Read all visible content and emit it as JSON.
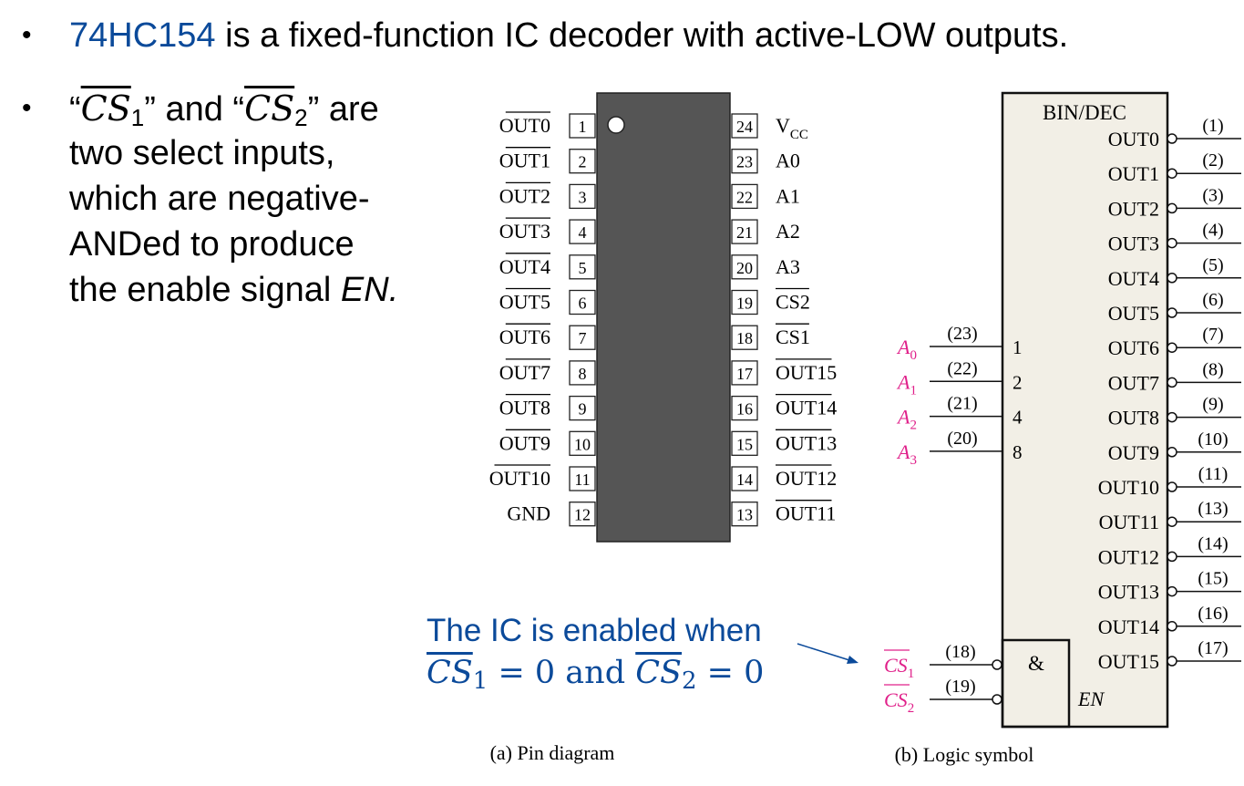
{
  "bullet1": {
    "part_name": "74HC154",
    "rest": " is a fixed-function IC decoder with active-LOW outputs."
  },
  "bullet2": {
    "open_quote": "“",
    "cs_base": "CS",
    "sub1": "1",
    "sub2": "2",
    "close_quote_and": "” and “",
    "close_quote_are": "” are",
    "line2": "two select inputs,",
    "line3": "which are negative-",
    "line4": "ANDed to produce",
    "line5_prefix": "the enable signal ",
    "line5_en": "EN."
  },
  "pin_diagram": {
    "caption": "(a) Pin diagram",
    "left_pins": [
      {
        "num": "1",
        "label": "OUT0",
        "overbar": true
      },
      {
        "num": "2",
        "label": "OUT1",
        "overbar": true
      },
      {
        "num": "3",
        "label": "OUT2",
        "overbar": true
      },
      {
        "num": "4",
        "label": "OUT3",
        "overbar": true
      },
      {
        "num": "5",
        "label": "OUT4",
        "overbar": true
      },
      {
        "num": "6",
        "label": "OUT5",
        "overbar": true
      },
      {
        "num": "7",
        "label": "OUT6",
        "overbar": true
      },
      {
        "num": "8",
        "label": "OUT7",
        "overbar": true
      },
      {
        "num": "9",
        "label": "OUT8",
        "overbar": true
      },
      {
        "num": "10",
        "label": "OUT9",
        "overbar": true
      },
      {
        "num": "11",
        "label": "OUT10",
        "overbar": true
      },
      {
        "num": "12",
        "label": "GND",
        "overbar": false
      }
    ],
    "right_pins": [
      {
        "num": "24",
        "label": "V",
        "sub": "CC",
        "overbar": false
      },
      {
        "num": "23",
        "label": "A0",
        "overbar": false
      },
      {
        "num": "22",
        "label": "A1",
        "overbar": false
      },
      {
        "num": "21",
        "label": "A2",
        "overbar": false
      },
      {
        "num": "20",
        "label": "A3",
        "overbar": false
      },
      {
        "num": "19",
        "label": "CS2",
        "overbar": true
      },
      {
        "num": "18",
        "label": "CS1",
        "overbar": true
      },
      {
        "num": "17",
        "label": "OUT15",
        "overbar": true
      },
      {
        "num": "16",
        "label": "OUT14",
        "overbar": true
      },
      {
        "num": "15",
        "label": "OUT13",
        "overbar": true
      },
      {
        "num": "14",
        "label": "OUT12",
        "overbar": true
      },
      {
        "num": "13",
        "label": "OUT11",
        "overbar": true
      }
    ]
  },
  "logic_symbol": {
    "caption": "(b) Logic symbol",
    "title": "BIN/DEC",
    "outputs": [
      {
        "label": "OUT0",
        "pin": "(1)"
      },
      {
        "label": "OUT1",
        "pin": "(2)"
      },
      {
        "label": "OUT2",
        "pin": "(3)"
      },
      {
        "label": "OUT3",
        "pin": "(4)"
      },
      {
        "label": "OUT4",
        "pin": "(5)"
      },
      {
        "label": "OUT5",
        "pin": "(6)"
      },
      {
        "label": "OUT6",
        "pin": "(7)"
      },
      {
        "label": "OUT7",
        "pin": "(8)"
      },
      {
        "label": "OUT8",
        "pin": "(9)"
      },
      {
        "label": "OUT9",
        "pin": "(10)"
      },
      {
        "label": "OUT10",
        "pin": "(11)"
      },
      {
        "label": "OUT11",
        "pin": "(13)"
      },
      {
        "label": "OUT12",
        "pin": "(14)"
      },
      {
        "label": "OUT13",
        "pin": "(15)"
      },
      {
        "label": "OUT14",
        "pin": "(16)"
      },
      {
        "label": "OUT15",
        "pin": "(17)"
      }
    ],
    "inputs": [
      {
        "name": "A",
        "sub": "0",
        "pin": "(23)",
        "weight": "1"
      },
      {
        "name": "A",
        "sub": "1",
        "pin": "(22)",
        "weight": "2"
      },
      {
        "name": "A",
        "sub": "2",
        "pin": "(21)",
        "weight": "4"
      },
      {
        "name": "A",
        "sub": "3",
        "pin": "(20)",
        "weight": "8"
      }
    ],
    "enables": [
      {
        "name": "CS",
        "sub": "1",
        "pin": "(18)"
      },
      {
        "name": "CS",
        "sub": "2",
        "pin": "(19)"
      }
    ],
    "and_symbol": "&",
    "en_label": "EN",
    "input_color": "#e0208a"
  },
  "callout": {
    "line1": "The IC is enabled when",
    "cs": "CS",
    "sub1": "1",
    "sub2": "2",
    "eq_zero_and": " = 0 and ",
    "eq_zero": " = 0"
  },
  "colors": {
    "accent_blue": "#0b4a9a",
    "chip_body": "#555555",
    "symbol_fill": "#f2efe6",
    "input_magenta": "#e0208a"
  }
}
